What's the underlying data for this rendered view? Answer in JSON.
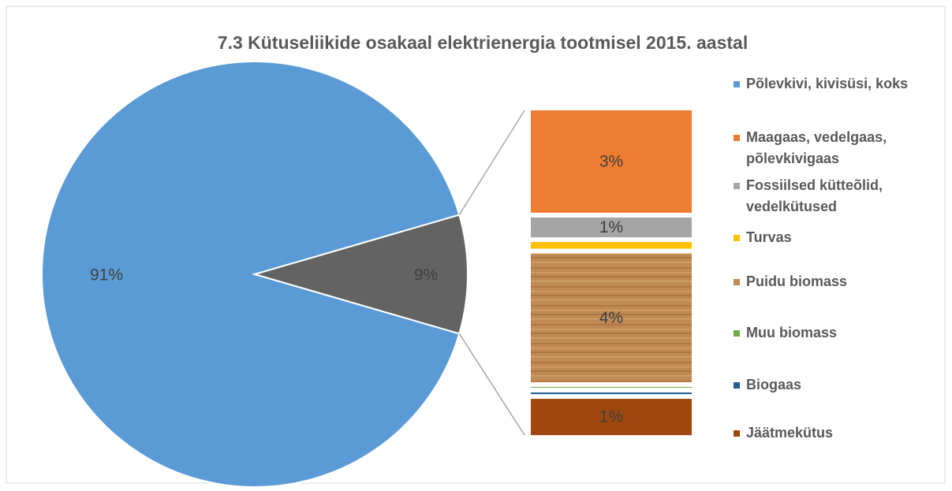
{
  "chart_data": {
    "type": "pie-of-bar",
    "title": "7.3 Kütuseliikide osakaal elektrienergia tootmisel 2015. aastal",
    "pie": {
      "names": [
        "Põlevkivi, kivisüsi, koks",
        null
      ],
      "values": [
        91,
        9
      ],
      "value_labels": [
        "91%",
        "9%"
      ],
      "colors": [
        "#5b9bd5",
        "#636363"
      ]
    },
    "bar": {
      "categories": [
        "Maagaas, vedelgaas, põlevkivigaas",
        "Fossiilsed kütteõlid, vedelkütused",
        "Turvas",
        "Puidu biomass",
        "Muu biomass",
        "Biogaas",
        "Jäätmekütus"
      ],
      "values": [
        3.1,
        0.6,
        0.2,
        3.9,
        0.02,
        0.05,
        1.1
      ],
      "value_labels": [
        "3%",
        "1%",
        null,
        "4%",
        null,
        null,
        "1%"
      ],
      "colors": [
        "#ed7d31",
        "#a5a5a5",
        "#ffc000",
        "#c08a55",
        "#70ad47",
        "#255e91",
        "#9e480e"
      ]
    },
    "legend": "right"
  }
}
